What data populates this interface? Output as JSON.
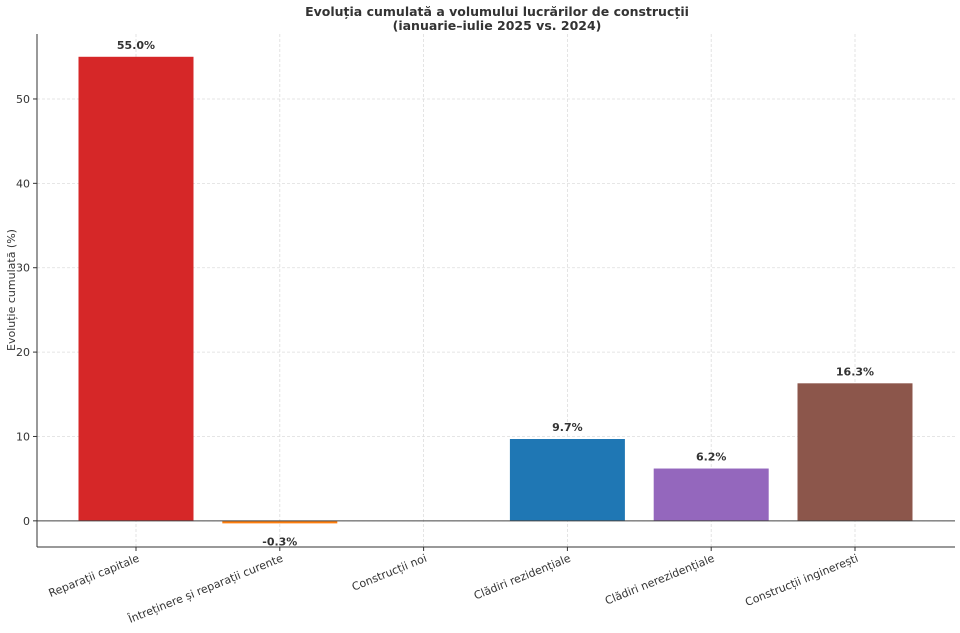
{
  "chart_data": {
    "type": "bar",
    "title": [
      "Evoluția cumulată a volumului lucrărilor de construcții",
      "(ianuarie–iulie 2025 vs. 2024)"
    ],
    "xlabel": "",
    "ylabel": "Evoluție cumulată (%)",
    "categories": [
      "Reparații capitale",
      "Întreținere și reparații curente",
      "Construcții noi",
      "Clădiri rezidențiale",
      "Clădiri nerezidențiale",
      "Construcții inginerești"
    ],
    "values": [
      55.0,
      -0.3,
      null,
      9.7,
      6.2,
      16.3
    ],
    "data_labels": [
      "55.0%",
      "-0.3%",
      "",
      "9.7%",
      "6.2%",
      "16.3%"
    ],
    "colors": [
      "#d62728",
      "#ff7f0e",
      "#2ca02c",
      "#1f77b4",
      "#9467bd",
      "#8c564b"
    ],
    "ylim": [
      -3.1,
      57.7
    ],
    "yticks": [
      0,
      10,
      20,
      30,
      40,
      50
    ],
    "grid": true
  }
}
